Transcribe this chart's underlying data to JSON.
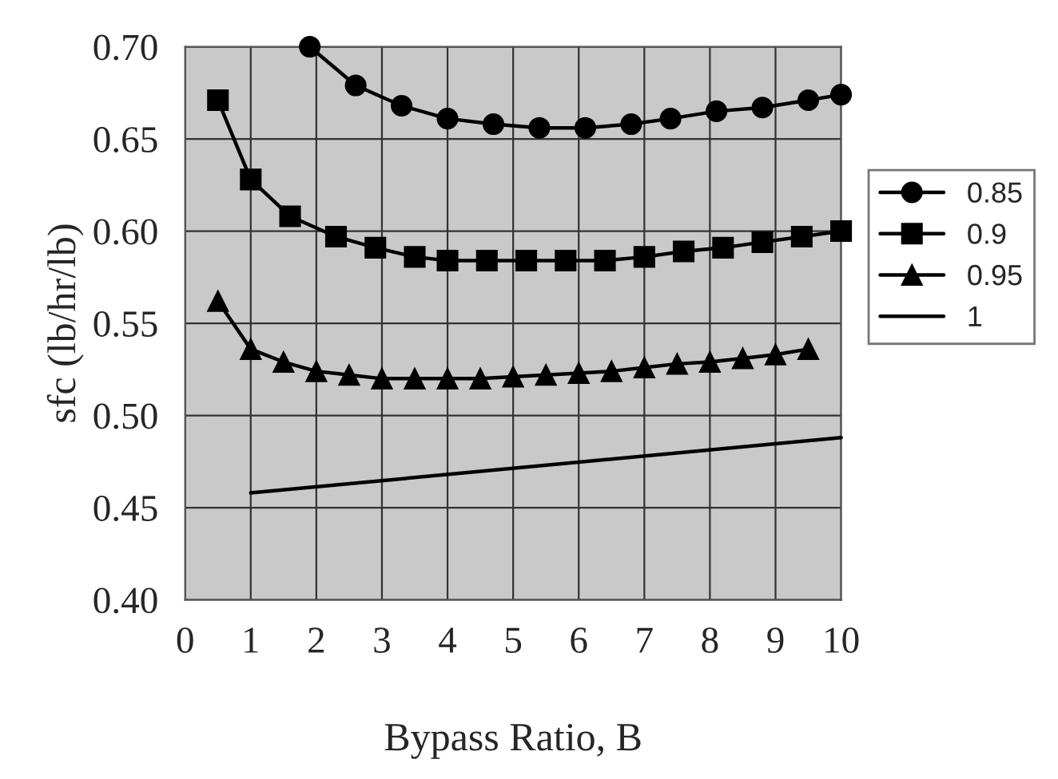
{
  "chart_data": {
    "type": "line",
    "xlabel": "Bypass Ratio, B",
    "ylabel": "sfc (lb/hr/lb)",
    "xlim": [
      0,
      10
    ],
    "xticks": [
      0,
      1,
      2,
      3,
      4,
      5,
      6,
      7,
      8,
      9,
      10
    ],
    "ylim": [
      0.4,
      0.7
    ],
    "yticks": [
      {
        "value": 0.4,
        "label": "0.40"
      },
      {
        "value": 0.45,
        "label": "0.45"
      },
      {
        "value": 0.5,
        "label": "0.50"
      },
      {
        "value": 0.55,
        "label": "0.55"
      },
      {
        "value": 0.6,
        "label": "0.60"
      },
      {
        "value": 0.65,
        "label": "0.65"
      },
      {
        "value": 0.7,
        "label": "0.70"
      }
    ],
    "grid": true,
    "legend": "right",
    "series": [
      {
        "name": "0.85",
        "color": "#000000",
        "marker": "circle",
        "x": [
          1.9,
          2.6,
          3.3,
          4.0,
          4.7,
          5.4,
          6.1,
          6.8,
          7.4,
          8.1,
          8.8,
          9.5,
          10.0
        ],
        "values": [
          0.7,
          0.679,
          0.668,
          0.661,
          0.658,
          0.656,
          0.656,
          0.658,
          0.661,
          0.665,
          0.667,
          0.671,
          0.674
        ]
      },
      {
        "name": "0.9",
        "color": "#000000",
        "marker": "square",
        "x": [
          0.5,
          1.0,
          1.6,
          2.3,
          2.9,
          3.5,
          4.0,
          4.6,
          5.2,
          5.8,
          6.4,
          7.0,
          7.6,
          8.2,
          8.8,
          9.4,
          10.0
        ],
        "values": [
          0.671,
          0.628,
          0.608,
          0.597,
          0.591,
          0.586,
          0.584,
          0.584,
          0.584,
          0.584,
          0.584,
          0.586,
          0.589,
          0.591,
          0.594,
          0.597,
          0.6
        ]
      },
      {
        "name": "0.95",
        "color": "#000000",
        "marker": "triangle",
        "x": [
          0.5,
          1.0,
          1.5,
          2.0,
          2.5,
          3.0,
          3.5,
          4.0,
          4.5,
          5.0,
          5.5,
          6.0,
          6.5,
          7.0,
          7.5,
          8.0,
          8.5,
          9.0,
          9.5
        ],
        "values": [
          0.562,
          0.536,
          0.529,
          0.524,
          0.522,
          0.52,
          0.52,
          0.52,
          0.52,
          0.521,
          0.522,
          0.523,
          0.524,
          0.526,
          0.528,
          0.529,
          0.531,
          0.533,
          0.536
        ]
      },
      {
        "name": "1",
        "color": "#000000",
        "marker": "none",
        "x": [
          1.0,
          10.0
        ],
        "values": [
          0.458,
          0.488
        ]
      }
    ]
  }
}
